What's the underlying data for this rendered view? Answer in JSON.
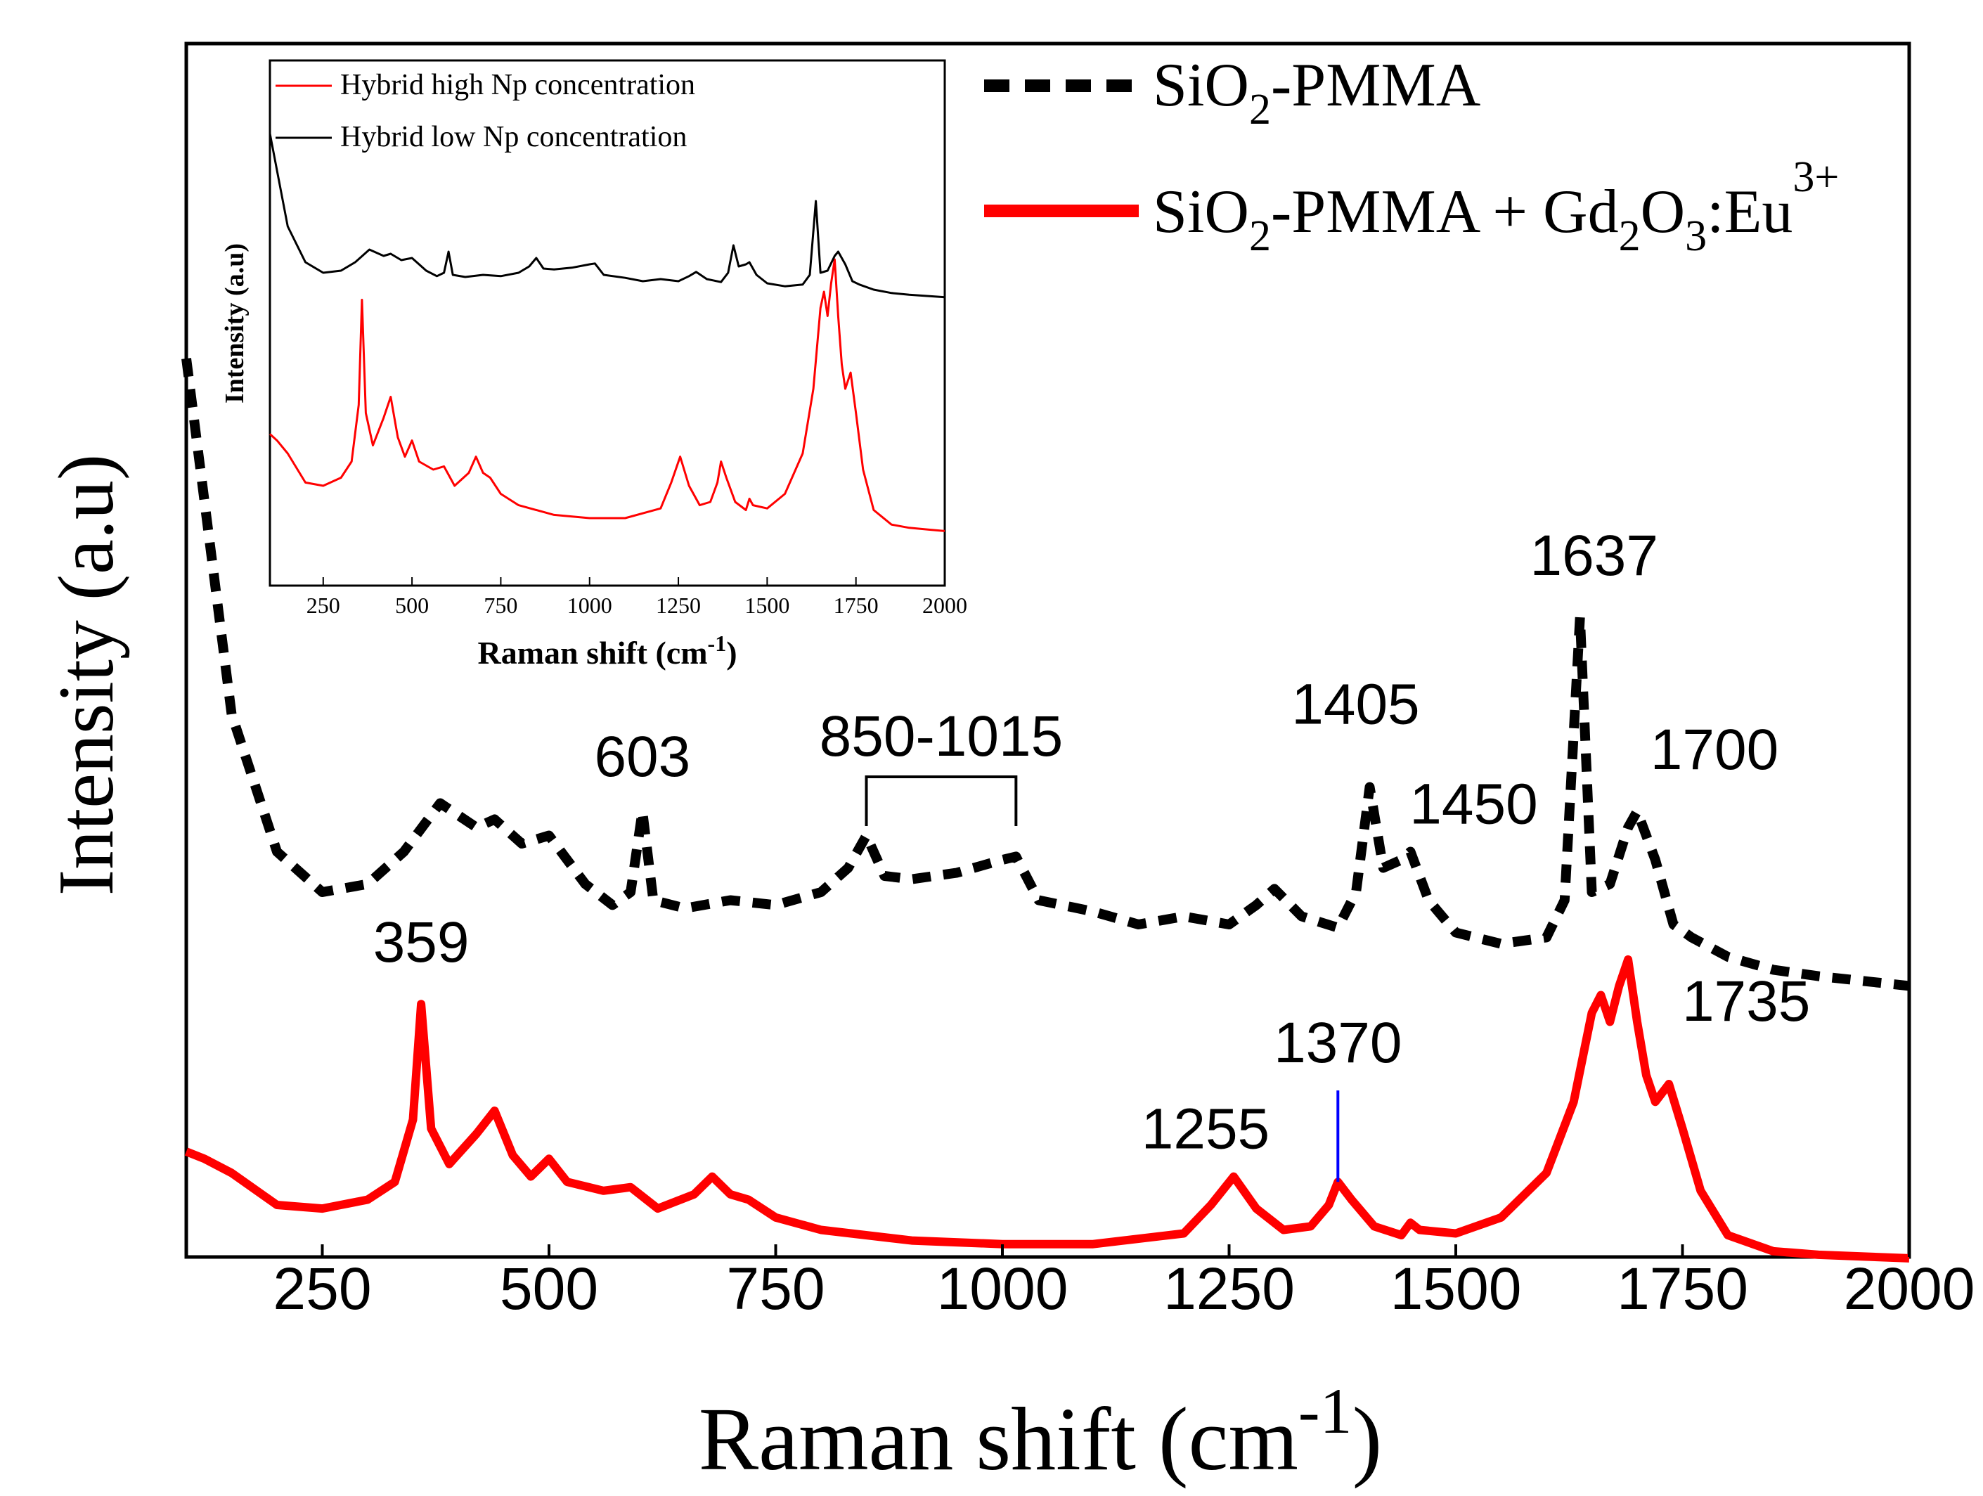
{
  "chart_data": [
    {
      "type": "line",
      "title": "",
      "xlabel": "Raman shift (cm",
      "xlabel_sup": "-1",
      "xlabel_close": ")",
      "ylabel": "Intensity (a.u)",
      "xlim": [
        100,
        2000
      ],
      "x_ticks": [
        250,
        500,
        750,
        1000,
        1250,
        1500,
        1750,
        2000
      ],
      "y_ticks": [],
      "grid": false,
      "legend_position": "top-right",
      "legend": [
        {
          "text": "SiO",
          "sub1": "2",
          "rest": "-PMMA",
          "color": "#000000",
          "style": "dashed"
        },
        {
          "text": "SiO",
          "sub1": "2",
          "rest": "-PMMA + Gd",
          "sub2": "2",
          "mid": "O",
          "sub3": "3",
          "tail": ":Eu",
          "sup": "3+",
          "color": "#ff0000",
          "style": "solid"
        }
      ],
      "series": [
        {
          "name": "SiO2-PMMA",
          "color": "#000000",
          "style": "dashed",
          "x": [
            100,
            150,
            200,
            250,
            300,
            340,
            380,
            420,
            440,
            470,
            500,
            540,
            570,
            590,
            603,
            615,
            650,
            700,
            750,
            800,
            830,
            850,
            870,
            900,
            950,
            1000,
            1015,
            1040,
            1100,
            1150,
            1200,
            1250,
            1280,
            1300,
            1330,
            1370,
            1390,
            1405,
            1420,
            1440,
            1450,
            1470,
            1500,
            1550,
            1600,
            1620,
            1637,
            1650,
            1670,
            1690,
            1700,
            1720,
            1740,
            1760,
            1800,
            1850,
            1900,
            1950,
            2000
          ],
          "y": [
            4.0,
            1.8,
            0.95,
            0.7,
            0.75,
            0.95,
            1.25,
            1.1,
            1.15,
            1.0,
            1.05,
            0.75,
            0.62,
            0.7,
            1.2,
            0.65,
            0.6,
            0.65,
            0.62,
            0.7,
            0.85,
            1.05,
            0.8,
            0.78,
            0.82,
            0.9,
            0.92,
            0.65,
            0.58,
            0.5,
            0.55,
            0.5,
            0.62,
            0.72,
            0.55,
            0.48,
            0.7,
            1.35,
            0.85,
            0.9,
            0.95,
            0.65,
            0.45,
            0.38,
            0.42,
            0.65,
            2.4,
            0.7,
            0.75,
            1.1,
            1.2,
            0.9,
            0.5,
            0.42,
            0.3,
            0.22,
            0.18,
            0.15,
            0.12
          ]
        },
        {
          "name": "SiO2-PMMA + Gd2O3:Eu3+",
          "color": "#ff0000",
          "style": "solid",
          "x": [
            100,
            120,
            150,
            200,
            250,
            300,
            330,
            350,
            359,
            370,
            390,
            420,
            440,
            460,
            480,
            500,
            520,
            560,
            590,
            620,
            660,
            680,
            700,
            720,
            750,
            800,
            900,
            1000,
            1100,
            1200,
            1230,
            1255,
            1280,
            1310,
            1340,
            1360,
            1370,
            1385,
            1410,
            1440,
            1450,
            1460,
            1500,
            1550,
            1600,
            1630,
            1650,
            1660,
            1670,
            1680,
            1690,
            1700,
            1710,
            1720,
            1735,
            1750,
            1770,
            1800,
            1850,
            1900,
            1950,
            2000
          ],
          "y": [
            0.62,
            0.58,
            0.5,
            0.32,
            0.3,
            0.35,
            0.45,
            0.8,
            1.45,
            0.75,
            0.55,
            0.72,
            0.85,
            0.6,
            0.48,
            0.58,
            0.45,
            0.4,
            0.42,
            0.3,
            0.38,
            0.48,
            0.38,
            0.35,
            0.25,
            0.18,
            0.12,
            0.1,
            0.1,
            0.16,
            0.32,
            0.48,
            0.3,
            0.18,
            0.2,
            0.32,
            0.45,
            0.35,
            0.2,
            0.15,
            0.22,
            0.18,
            0.16,
            0.25,
            0.5,
            0.9,
            1.4,
            1.5,
            1.35,
            1.55,
            1.7,
            1.35,
            1.05,
            0.9,
            1.0,
            0.75,
            0.4,
            0.15,
            0.06,
            0.04,
            0.03,
            0.02
          ]
        }
      ],
      "annotations": [
        {
          "text": "603",
          "x": 603,
          "series": 0
        },
        {
          "text": "850-1015",
          "x_start": 850,
          "x_end": 1015,
          "series": 0
        },
        {
          "text": "1405",
          "x": 1405,
          "series": 0
        },
        {
          "text": "1450",
          "x": 1450,
          "series": 0
        },
        {
          "text": "1637",
          "x": 1637,
          "series": 0
        },
        {
          "text": "1700",
          "x": 1700,
          "series": 0
        },
        {
          "text": "359",
          "x": 359,
          "series": 1
        },
        {
          "text": "1255",
          "x": 1255,
          "series": 1
        },
        {
          "text": "1370",
          "x": 1370,
          "series": 1
        },
        {
          "text": "1735",
          "x": 1735,
          "series": 1
        }
      ]
    },
    {
      "type": "line",
      "title": "",
      "xlabel": "Raman shift (cm",
      "xlabel_sup": "-1",
      "xlabel_close": ")",
      "ylabel": "Intensity (a.u)",
      "xlim": [
        100,
        2000
      ],
      "x_ticks": [
        250,
        500,
        750,
        1000,
        1250,
        1500,
        1750,
        2000
      ],
      "x_tick_labels": [
        "250",
        "500",
        "750",
        "1000",
        "1250",
        "1500",
        "1750",
        "2000"
      ],
      "grid": false,
      "legend_position": "top-left",
      "series": [
        {
          "name": "Hybrid high Np concentration",
          "color": "#ff0000",
          "x": [
            100,
            120,
            150,
            200,
            250,
            300,
            330,
            350,
            359,
            370,
            390,
            420,
            440,
            460,
            480,
            500,
            520,
            560,
            590,
            620,
            660,
            680,
            700,
            720,
            750,
            800,
            900,
            1000,
            1100,
            1200,
            1230,
            1255,
            1280,
            1310,
            1340,
            1360,
            1370,
            1385,
            1410,
            1440,
            1450,
            1460,
            1500,
            1550,
            1600,
            1630,
            1650,
            1660,
            1670,
            1680,
            1690,
            1700,
            1710,
            1720,
            1735,
            1750,
            1770,
            1800,
            1850,
            1900,
            1950,
            2000
          ],
          "y": [
            0.62,
            0.58,
            0.5,
            0.32,
            0.3,
            0.35,
            0.45,
            0.8,
            1.45,
            0.75,
            0.55,
            0.72,
            0.85,
            0.6,
            0.48,
            0.58,
            0.45,
            0.4,
            0.42,
            0.3,
            0.38,
            0.48,
            0.38,
            0.35,
            0.25,
            0.18,
            0.12,
            0.1,
            0.1,
            0.16,
            0.32,
            0.48,
            0.3,
            0.18,
            0.2,
            0.32,
            0.45,
            0.35,
            0.2,
            0.15,
            0.22,
            0.18,
            0.16,
            0.25,
            0.5,
            0.9,
            1.4,
            1.5,
            1.35,
            1.55,
            1.7,
            1.35,
            1.05,
            0.9,
            1.0,
            0.75,
            0.4,
            0.15,
            0.06,
            0.04,
            0.03,
            0.02
          ]
        },
        {
          "name": "Hybrid low Np concentration",
          "color": "#000000",
          "x": [
            100,
            150,
            200,
            250,
            300,
            340,
            380,
            420,
            440,
            470,
            500,
            540,
            570,
            590,
            603,
            615,
            650,
            700,
            750,
            800,
            830,
            850,
            870,
            900,
            950,
            1000,
            1015,
            1040,
            1100,
            1150,
            1200,
            1250,
            1280,
            1300,
            1330,
            1370,
            1390,
            1405,
            1420,
            1440,
            1450,
            1470,
            1500,
            1550,
            1600,
            1620,
            1637,
            1650,
            1670,
            1690,
            1700,
            1720,
            1740,
            1760,
            1800,
            1850,
            1900,
            1950,
            2000
          ],
          "y": [
            4.0,
            1.8,
            0.95,
            0.7,
            0.75,
            0.95,
            1.25,
            1.1,
            1.15,
            1.0,
            1.05,
            0.75,
            0.62,
            0.7,
            1.2,
            0.65,
            0.6,
            0.65,
            0.62,
            0.7,
            0.85,
            1.05,
            0.8,
            0.78,
            0.82,
            0.9,
            0.92,
            0.65,
            0.58,
            0.5,
            0.55,
            0.5,
            0.62,
            0.72,
            0.55,
            0.48,
            0.7,
            1.35,
            0.85,
            0.9,
            0.95,
            0.65,
            0.45,
            0.38,
            0.42,
            0.65,
            2.4,
            0.7,
            0.75,
            1.1,
            1.2,
            0.9,
            0.5,
            0.42,
            0.3,
            0.22,
            0.18,
            0.15,
            0.12
          ]
        }
      ]
    }
  ]
}
